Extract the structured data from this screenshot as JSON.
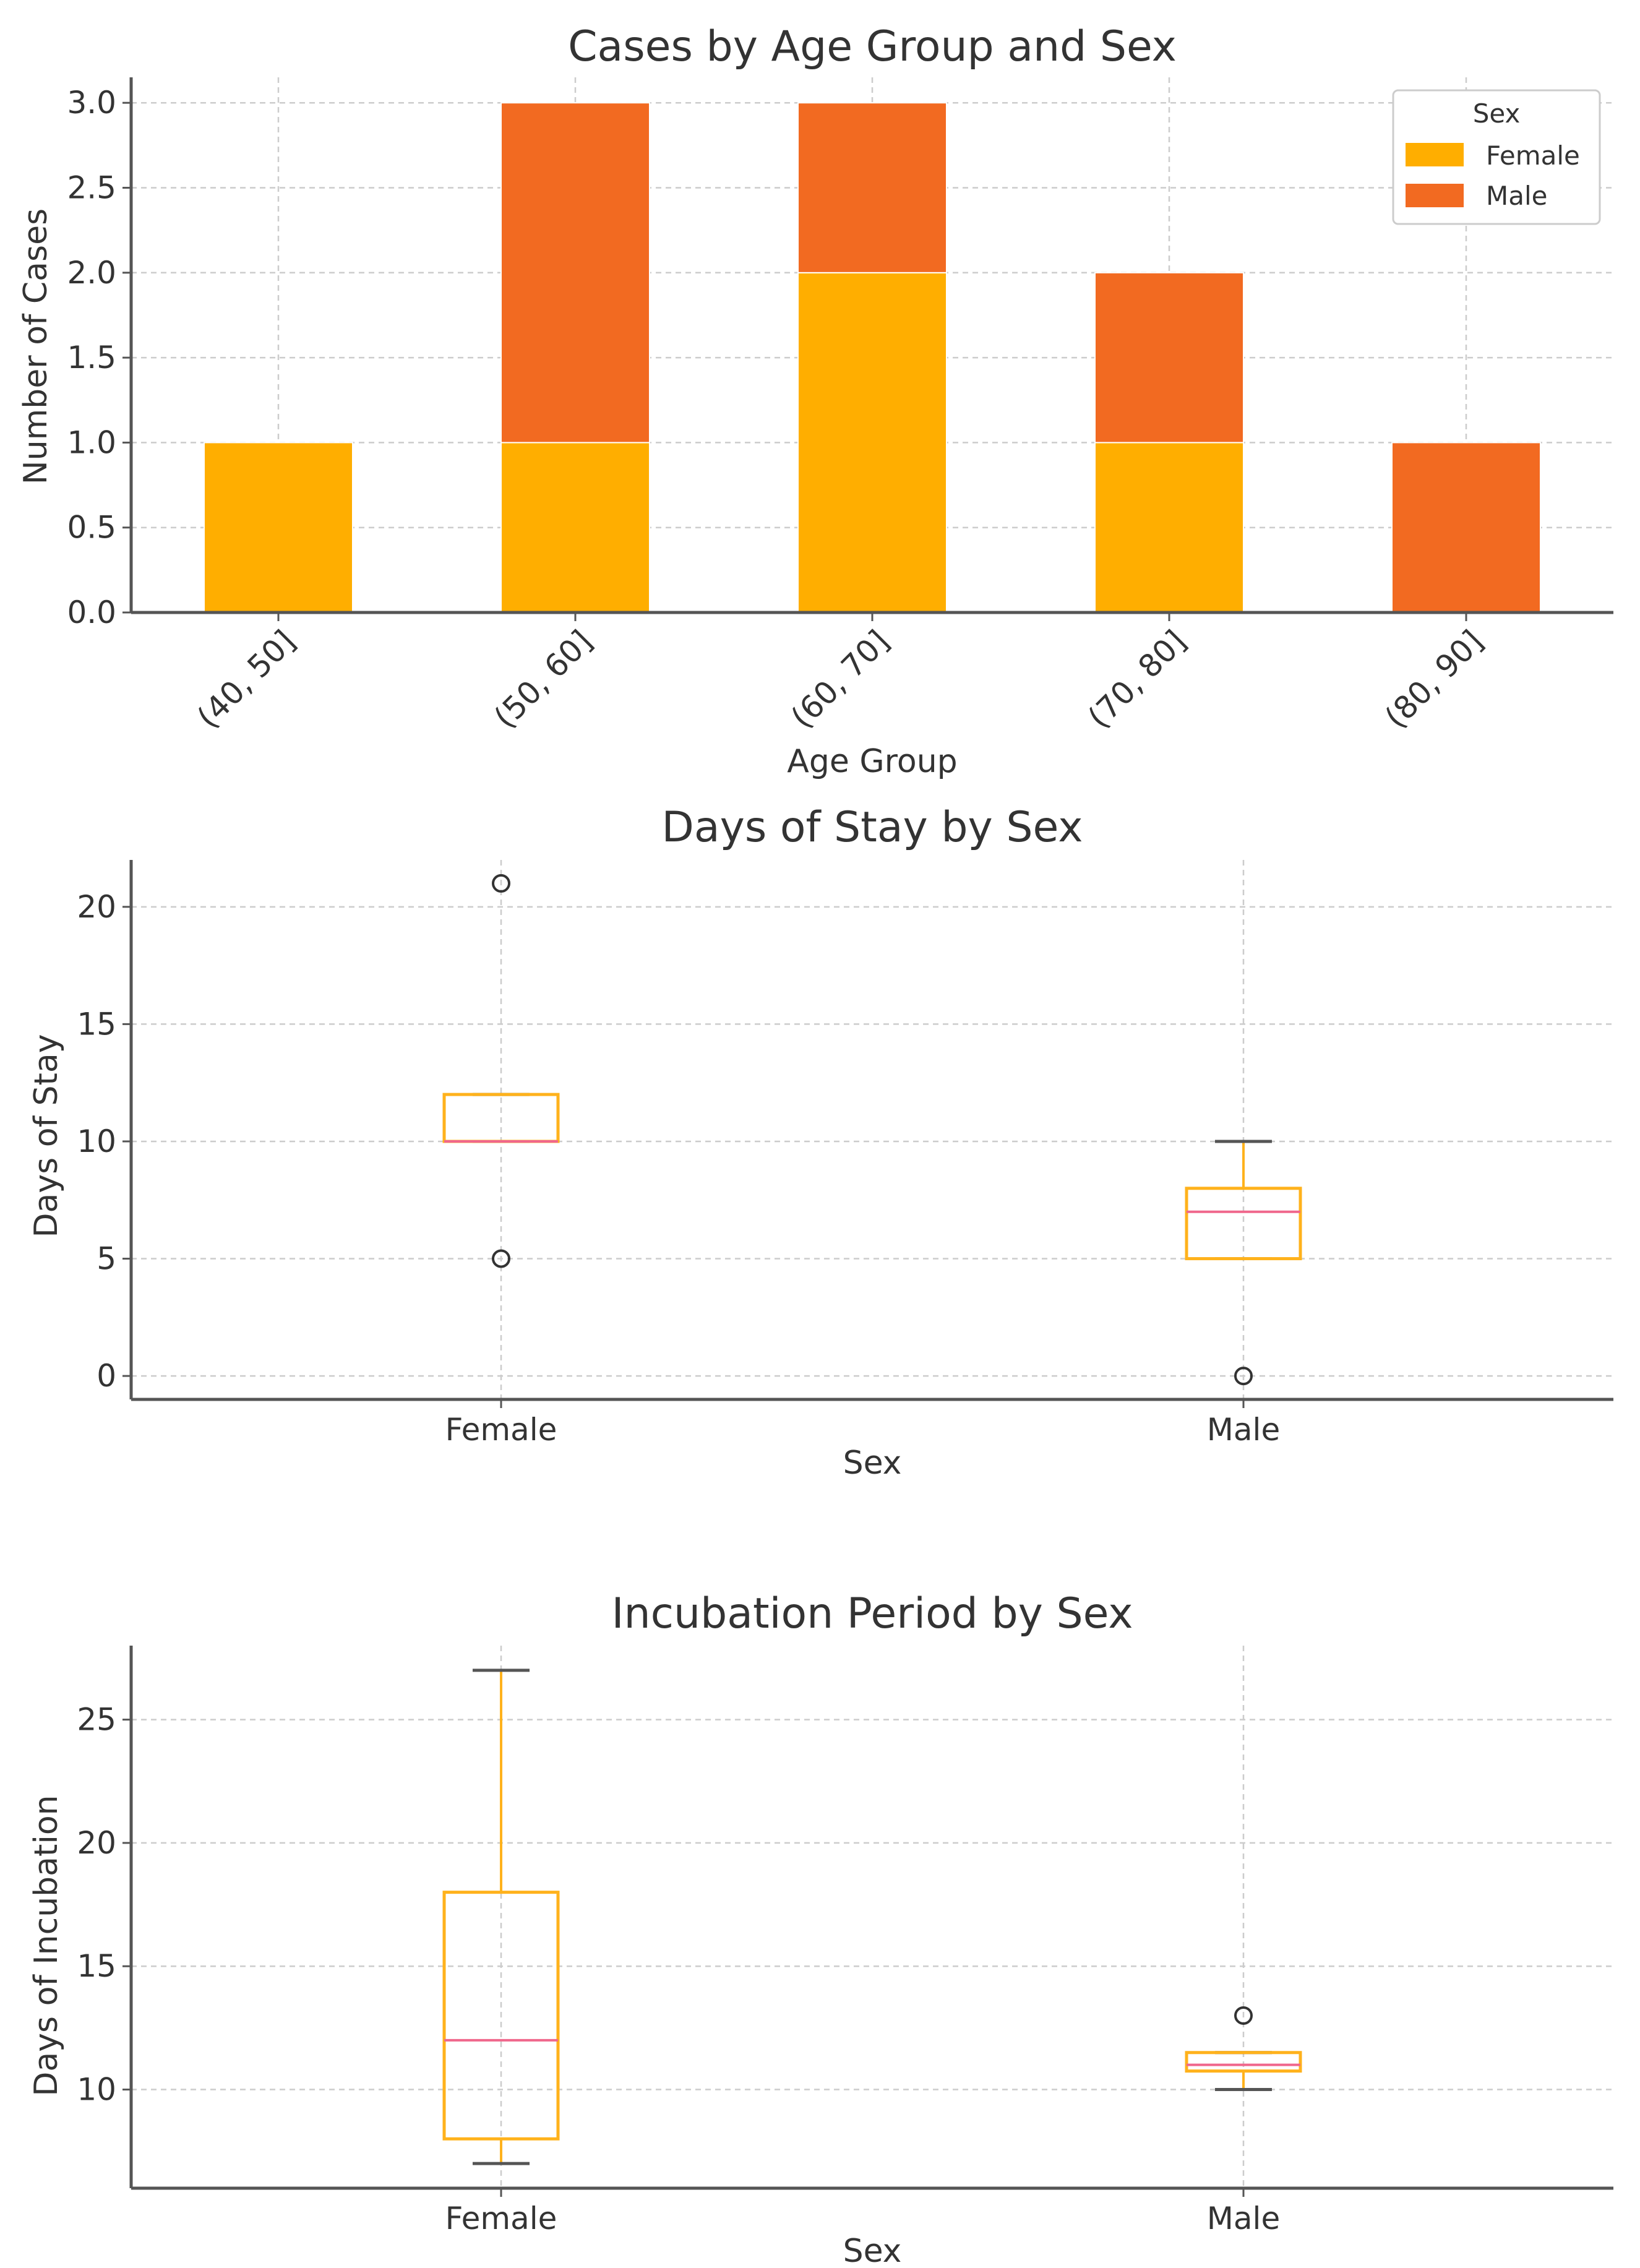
{
  "colors": {
    "female": "#FFAE00",
    "male": "#F26A21",
    "box": "#FFB21C",
    "median": "#F0678C",
    "whisker_cap": "#555555",
    "outlier": "#333333"
  },
  "chart_data": [
    {
      "type": "bar",
      "stacked": true,
      "title": "Cases by Age Group and Sex",
      "xlabel": "Age Group",
      "ylabel": "Number of Cases",
      "categories": [
        "(40, 50]",
        "(50, 60]",
        "(60, 70]",
        "(70, 80]",
        "(80, 90]"
      ],
      "series": [
        {
          "name": "Female",
          "values": [
            1,
            1,
            2,
            1,
            0
          ]
        },
        {
          "name": "Male",
          "values": [
            0,
            2,
            1,
            1,
            1
          ]
        }
      ],
      "ylim": [
        0,
        3.15
      ],
      "yticks": [
        "0.0",
        "0.5",
        "1.0",
        "1.5",
        "2.0",
        "2.5",
        "3.0"
      ],
      "legend": {
        "title": "Sex",
        "placement": "top-right"
      },
      "grid": true
    },
    {
      "type": "box",
      "title": "Days of Stay by Sex",
      "xlabel": "Sex",
      "ylabel": "Days of Stay",
      "categories": [
        "Female",
        "Male"
      ],
      "boxes": [
        {
          "name": "Female",
          "q1": 10,
          "median": 10,
          "q3": 12,
          "whisker_low": 10,
          "whisker_high": 12,
          "outliers": [
            21,
            5
          ]
        },
        {
          "name": "Male",
          "q1": 5,
          "median": 7,
          "q3": 8,
          "whisker_low": 5,
          "whisker_high": 10,
          "outliers": [
            0
          ]
        }
      ],
      "ylim": [
        -1,
        22
      ],
      "yticks": [
        "0",
        "5",
        "10",
        "15",
        "20"
      ],
      "grid": true
    },
    {
      "type": "box",
      "title": "Incubation Period by Sex",
      "xlabel": "Sex",
      "ylabel": "Days of Incubation",
      "categories": [
        "Female",
        "Male"
      ],
      "boxes": [
        {
          "name": "Female",
          "q1": 8,
          "median": 12,
          "q3": 18,
          "whisker_low": 7,
          "whisker_high": 27,
          "outliers": []
        },
        {
          "name": "Male",
          "q1": 10.75,
          "median": 11,
          "q3": 11.5,
          "whisker_low": 10,
          "whisker_high": 11.5,
          "outliers": [
            13
          ]
        }
      ],
      "ylim": [
        6,
        28
      ],
      "yticks": [
        "10",
        "15",
        "20",
        "25"
      ],
      "grid": true
    }
  ]
}
